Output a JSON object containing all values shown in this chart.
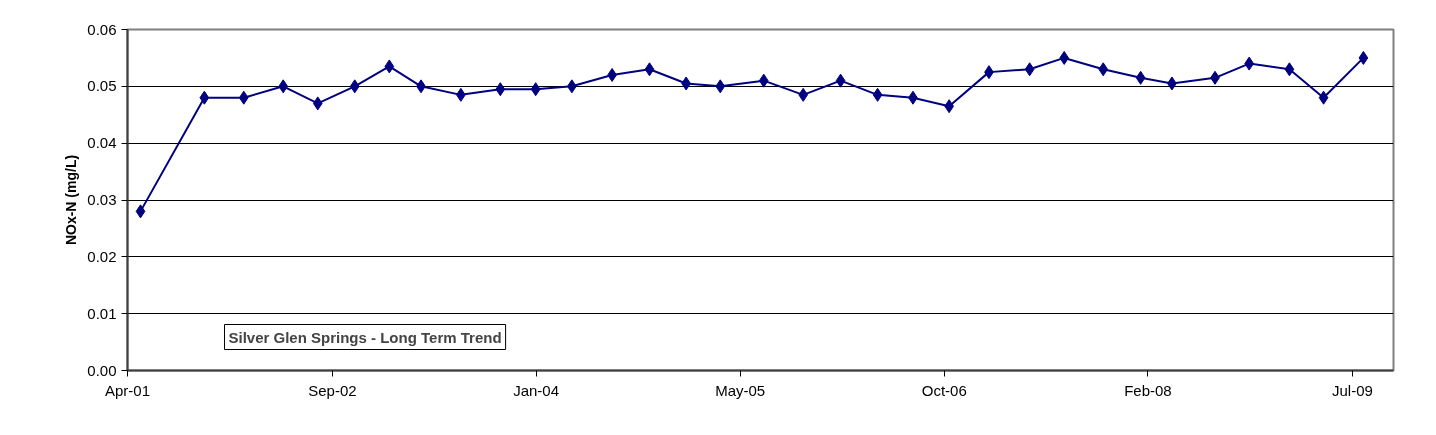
{
  "chart_data": {
    "type": "line",
    "ylabel": "NOx-N (mg/L)",
    "annotations": [
      "Silver Glen Springs - Long Term Trend"
    ],
    "x": [
      "2001-05-17",
      "2001-10-21",
      "2002-01-26",
      "2002-05-03",
      "2002-07-27",
      "2002-10-26",
      "2003-01-19",
      "2003-04-07",
      "2003-07-14",
      "2003-10-19",
      "2004-01-14",
      "2004-04-12",
      "2004-07-20",
      "2004-10-20",
      "2005-01-18",
      "2005-04-12",
      "2005-07-28",
      "2005-11-02",
      "2006-02-02",
      "2006-05-04",
      "2006-07-30",
      "2006-10-27",
      "2007-02-02",
      "2007-05-13",
      "2007-08-06",
      "2007-11-10",
      "2008-02-10",
      "2008-04-27",
      "2008-08-11",
      "2008-11-03",
      "2009-02-10",
      "2009-05-05",
      "2009-08-11"
    ],
    "series": [
      {
        "color": "#000080",
        "values": [
          0.028,
          0.048,
          0.048,
          0.05,
          0.047,
          0.05,
          0.0535,
          0.05,
          0.0485,
          0.0495,
          0.0495,
          0.05,
          0.052,
          0.053,
          0.0505,
          0.05,
          0.051,
          0.0485,
          0.051,
          0.0485,
          0.048,
          0.0465,
          0.0525,
          0.053,
          0.055,
          0.053,
          0.0515,
          0.0505,
          0.0515,
          0.054,
          0.053,
          0.048,
          0.055
        ]
      }
    ],
    "xlim": [
      "2001-04-15",
      "2009-10-24"
    ],
    "xticks": [
      {
        "value": "2001-04-15",
        "label": "Apr-01"
      },
      {
        "value": "2002-09-01",
        "label": "Sep-02"
      },
      {
        "value": "2004-01-15",
        "label": "Jan-04"
      },
      {
        "value": "2005-05-31",
        "label": "May-05"
      },
      {
        "value": "2006-10-15",
        "label": "Oct-06"
      },
      {
        "value": "2008-02-28",
        "label": "Feb-08"
      },
      {
        "value": "2009-07-15",
        "label": "Jul-09"
      }
    ],
    "ylim": [
      0,
      0.06
    ],
    "yticks": [
      {
        "value": 0,
        "label": "0.00"
      },
      {
        "value": 0.01,
        "label": "0.01"
      },
      {
        "value": 0.02,
        "label": "0.02"
      },
      {
        "value": 0.03,
        "label": "0.03"
      },
      {
        "value": 0.04,
        "label": "0.04"
      },
      {
        "value": 0.05,
        "label": "0.05"
      },
      {
        "value": 0.06,
        "label": "0.06"
      }
    ],
    "grid": "y",
    "marker": "diamond",
    "line_style": "solid"
  }
}
